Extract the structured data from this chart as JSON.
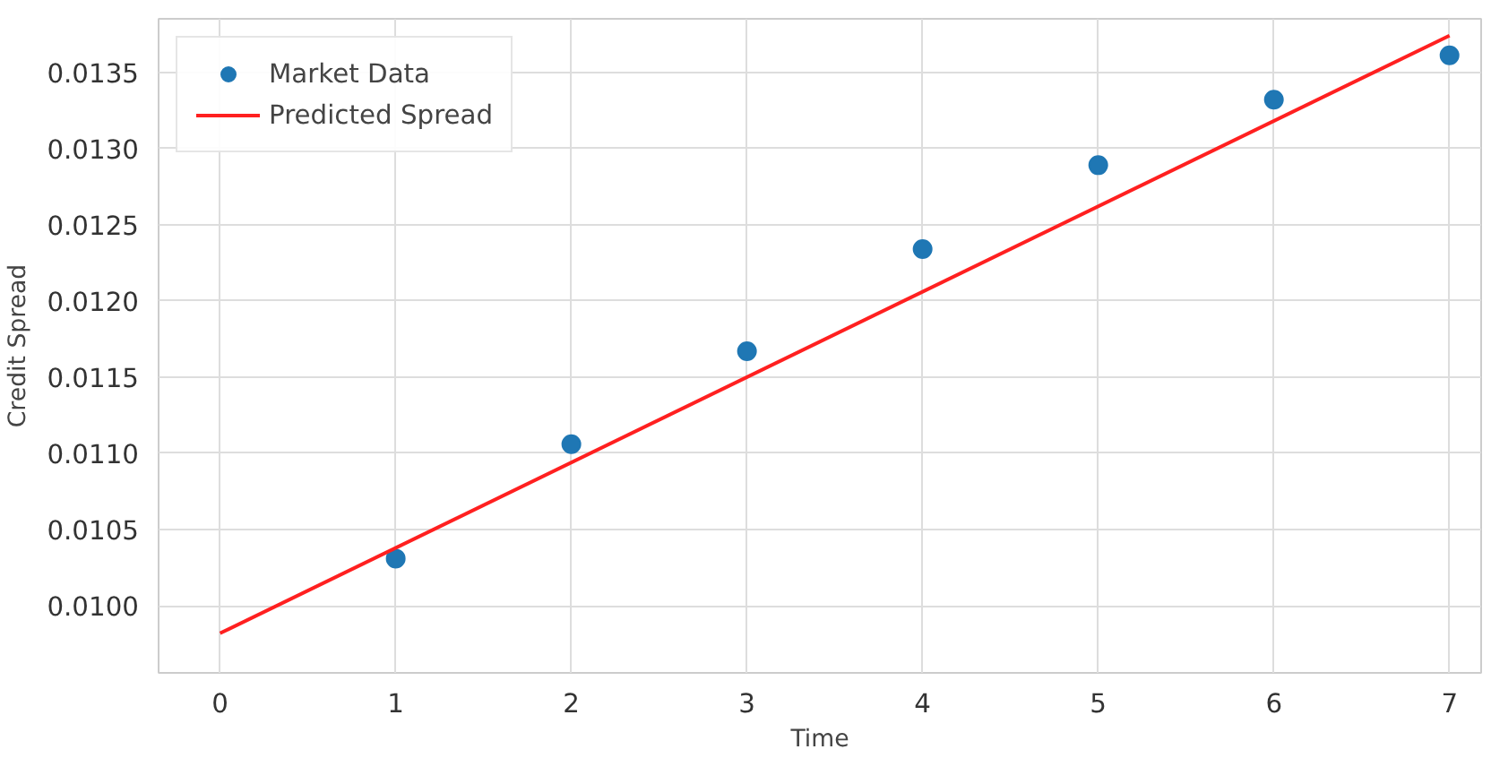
{
  "chart_data": {
    "type": "scatter",
    "xlabel": "Time",
    "ylabel": "Credit Spread",
    "series": [
      {
        "name": "Market Data",
        "color": "#1f77b4",
        "x": [
          1,
          2,
          3,
          4,
          5,
          6,
          7
        ],
        "values": [
          0.01031,
          0.01106,
          0.01167,
          0.01234,
          0.01289,
          0.01332,
          0.01361
        ],
        "marker": "circle"
      },
      {
        "name": "Predicted Spread",
        "type": "line",
        "color": "#ff2020",
        "x": [
          0,
          7
        ],
        "values": [
          0.00982,
          0.01374
        ],
        "line_style": "solid"
      }
    ],
    "xlim": [
      -0.35,
      7.18
    ],
    "ylim": [
      0.00956,
      0.01385
    ],
    "xticks": [
      0,
      1,
      2,
      3,
      4,
      5,
      6,
      7
    ],
    "yticks": [
      {
        "value": 0.01,
        "label": "0.0100"
      },
      {
        "value": 0.0105,
        "label": "0.0105"
      },
      {
        "value": 0.011,
        "label": "0.0110"
      },
      {
        "value": 0.0115,
        "label": "0.0115"
      },
      {
        "value": 0.012,
        "label": "0.0120"
      },
      {
        "value": 0.0125,
        "label": "0.0125"
      },
      {
        "value": 0.013,
        "label": "0.0130"
      },
      {
        "value": 0.0135,
        "label": "0.0135"
      }
    ],
    "grid": true,
    "legend": "top left"
  }
}
